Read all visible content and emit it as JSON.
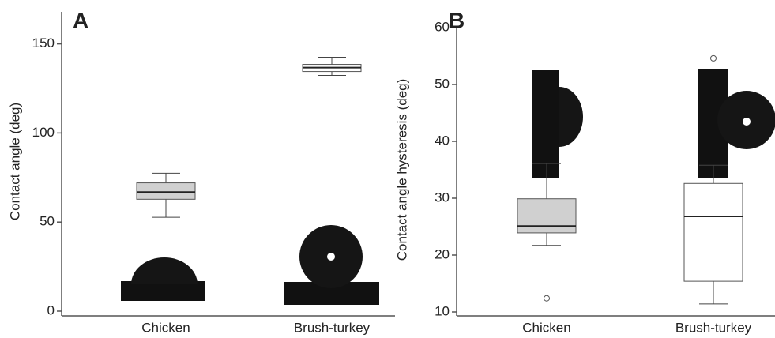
{
  "chart_data": [
    {
      "type": "box",
      "label": "A",
      "y_label": "Contact angle (deg)",
      "categories": [
        "Chicken",
        "Brush-turkey"
      ],
      "colors": [
        "#d0d0d0",
        "#ffffff"
      ],
      "series": [
        {
          "min": 52.7,
          "q1": 62.8,
          "median": 66.8,
          "q3": 72,
          "max": 77.4,
          "outliers": []
        },
        {
          "min": 132.3,
          "q1": 134.5,
          "median": 136.7,
          "q3": 138.5,
          "max": 142.5,
          "outliers": []
        }
      ],
      "ylim": [
        0,
        168
      ],
      "yticks": [
        0,
        50,
        100,
        150
      ]
    },
    {
      "type": "box",
      "label": "B",
      "y_label": "Contact angle hysteresis (deg)",
      "categories": [
        "Chicken",
        "Brush-turkey"
      ],
      "colors": [
        "#d0d0d0",
        "#ffffff"
      ],
      "series": [
        {
          "min": 21.7,
          "q1": 23.9,
          "median": 25.1,
          "q3": 29.9,
          "max": 36.1,
          "outliers": [
            12.4
          ]
        },
        {
          "min": 11.4,
          "q1": 15.4,
          "median": 26.8,
          "q3": 32.6,
          "max": 35.8,
          "outliers": [
            54.6
          ]
        }
      ],
      "ylim": [
        10,
        60
      ],
      "yticks": [
        10,
        20,
        30,
        40,
        50,
        60
      ]
    }
  ]
}
